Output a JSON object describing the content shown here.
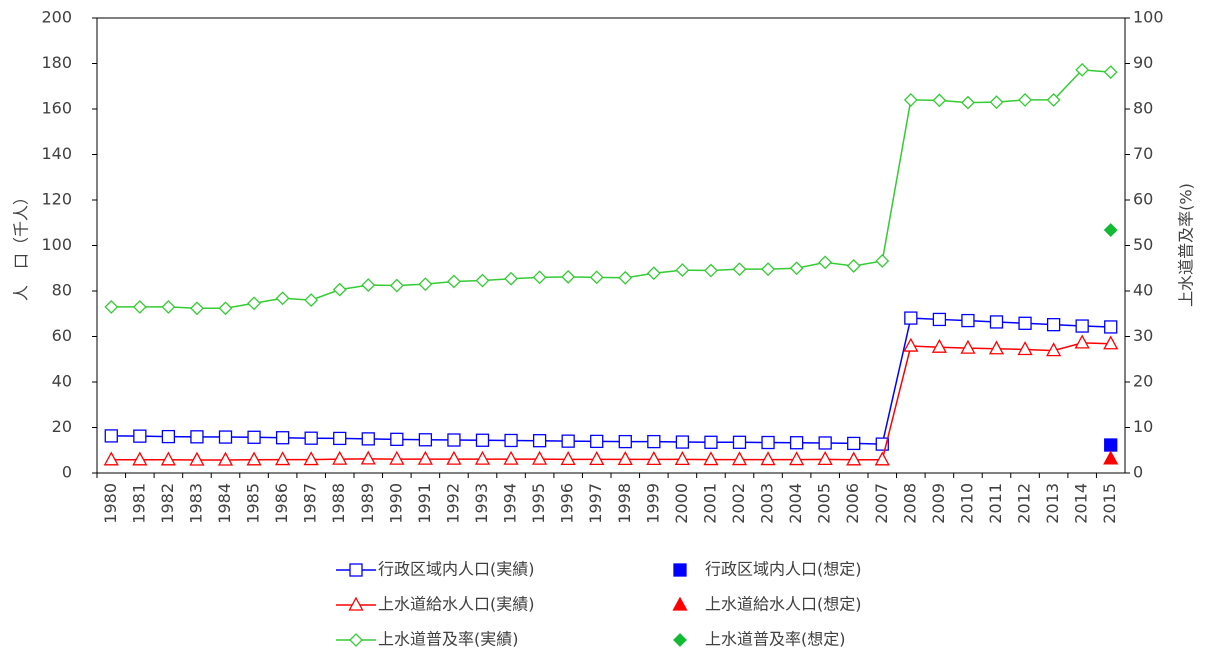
{
  "chart_data": {
    "type": "line",
    "y_label": "人　口（千人）",
    "y2_label": "上水道普及率(%)",
    "categories": [
      "1980",
      "1981",
      "1982",
      "1983",
      "1984",
      "1985",
      "1986",
      "1987",
      "1988",
      "1989",
      "1990",
      "1991",
      "1992",
      "1993",
      "1994",
      "1995",
      "1996",
      "1997",
      "1998",
      "1999",
      "2000",
      "2001",
      "2002",
      "2003",
      "2004",
      "2005",
      "2006",
      "2007",
      "2008",
      "2009",
      "2010",
      "2011",
      "2012",
      "2013",
      "2014",
      "2015"
    ],
    "ylim": [
      0,
      200
    ],
    "yticks": [
      0,
      20,
      40,
      60,
      80,
      100,
      120,
      140,
      160,
      180,
      200
    ],
    "y2lim": [
      0,
      100
    ],
    "y2ticks": [
      0,
      10,
      20,
      30,
      40,
      50,
      60,
      70,
      80,
      90,
      100
    ],
    "series": [
      {
        "name": "行政区域内人口(実績)",
        "color": "#0000ff",
        "marker": "square",
        "filled": false,
        "line": true,
        "values": [
          16.3,
          16.2,
          16.0,
          15.9,
          15.8,
          15.7,
          15.5,
          15.3,
          15.2,
          15.0,
          14.8,
          14.6,
          14.5,
          14.4,
          14.3,
          14.2,
          14.0,
          13.9,
          13.8,
          13.8,
          13.6,
          13.5,
          13.5,
          13.4,
          13.3,
          13.2,
          13.0,
          12.7,
          68.1,
          67.5,
          67.0,
          66.4,
          65.8,
          65.2,
          64.6,
          64.2
        ]
      },
      {
        "name": "行政区域内人口(想定)",
        "color": "#0000ff",
        "marker": "square",
        "filled": true,
        "line": false,
        "values": [
          null,
          null,
          null,
          null,
          null,
          null,
          null,
          null,
          null,
          null,
          null,
          null,
          null,
          null,
          null,
          null,
          null,
          null,
          null,
          null,
          null,
          null,
          null,
          null,
          null,
          null,
          null,
          null,
          null,
          null,
          null,
          null,
          null,
          null,
          null,
          12.3
        ]
      },
      {
        "name": "上水道給水人口(実績)",
        "color": "#ff0000",
        "marker": "triangle",
        "filled": false,
        "line": true,
        "values": [
          5.8,
          5.8,
          5.8,
          5.7,
          5.7,
          5.8,
          5.9,
          5.9,
          6.1,
          6.2,
          6.1,
          6.1,
          6.1,
          6.1,
          6.1,
          6.1,
          6.0,
          6.0,
          6.0,
          6.0,
          6.0,
          5.9,
          5.9,
          5.9,
          5.9,
          6.0,
          5.8,
          5.8,
          55.8,
          55.3,
          54.9,
          54.6,
          54.3,
          53.8,
          57.2,
          56.8
        ]
      },
      {
        "name": "上水道給水人口(想定)",
        "color": "#ff0000",
        "marker": "triangle",
        "filled": true,
        "line": false,
        "values": [
          null,
          null,
          null,
          null,
          null,
          null,
          null,
          null,
          null,
          null,
          null,
          null,
          null,
          null,
          null,
          null,
          null,
          null,
          null,
          null,
          null,
          null,
          null,
          null,
          null,
          null,
          null,
          null,
          null,
          null,
          null,
          null,
          null,
          null,
          null,
          6.2
        ]
      },
      {
        "name": "上水道普及率(実績)",
        "color": "#33cc33",
        "marker": "diamond",
        "filled": false,
        "line": true,
        "axis": "y2",
        "values": [
          36.5,
          36.5,
          36.5,
          36.2,
          36.2,
          37.3,
          38.4,
          38.0,
          40.3,
          41.3,
          41.2,
          41.5,
          42.1,
          42.3,
          42.7,
          43.0,
          43.1,
          43.0,
          42.9,
          43.9,
          44.6,
          44.5,
          44.8,
          44.8,
          45.0,
          46.3,
          45.5,
          46.6,
          82.0,
          81.9,
          81.4,
          81.5,
          82.0,
          82.0,
          88.6,
          88.1
        ]
      },
      {
        "name": "上水道普及率(想定)",
        "color": "#11bb33",
        "marker": "diamond",
        "filled": true,
        "line": false,
        "axis": "y2",
        "values": [
          null,
          null,
          null,
          null,
          null,
          null,
          null,
          null,
          null,
          null,
          null,
          null,
          null,
          null,
          null,
          null,
          null,
          null,
          null,
          null,
          null,
          null,
          null,
          null,
          null,
          null,
          null,
          null,
          null,
          null,
          null,
          null,
          null,
          null,
          null,
          53.4
        ]
      }
    ]
  }
}
